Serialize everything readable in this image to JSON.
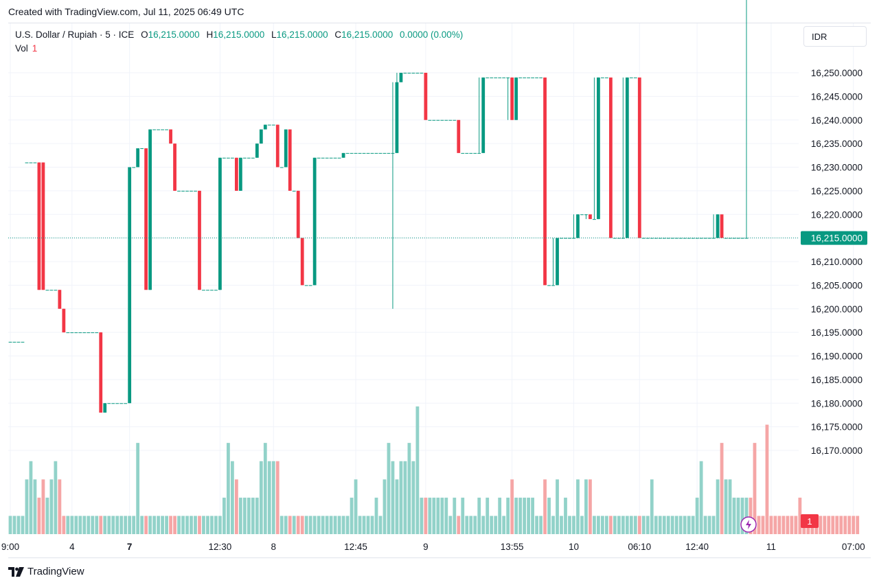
{
  "header": {
    "caption": "Created with TradingView.com, Jul 11, 2025 06:49 UTC"
  },
  "legend": {
    "symbol": "U.S. Dollar / Rupiah · 5 · ICE",
    "o_label": "O",
    "o_value": "16,215.0000",
    "h_label": "H",
    "h_value": "16,215.0000",
    "l_label": "L",
    "l_value": "16,215.0000",
    "c_label": "C",
    "c_value": "16,215.0000",
    "change": "0.0000 (0.00%)",
    "vol_label": "Vol",
    "vol_value": "1"
  },
  "price_axis": {
    "currency": "IDR"
  },
  "footer": {
    "brand": "TradingView"
  },
  "colors": {
    "up": "#089981",
    "down": "#f23645",
    "vol_up": "#92d2c9",
    "vol_down": "#f5a6a6",
    "grid": "#f0f3fa"
  },
  "chart_data": {
    "type": "candlestick",
    "y_ticks": [
      "16,250.0000",
      "16,245.0000",
      "16,240.0000",
      "16,235.0000",
      "16,230.0000",
      "16,225.0000",
      "16,220.0000",
      "16,215.0000",
      "16,210.0000",
      "16,205.0000",
      "16,200.0000",
      "16,195.0000",
      "16,190.0000",
      "16,185.0000",
      "16,180.0000",
      "16,175.0000",
      "16,170.0000"
    ],
    "y_tick_values": [
      16250,
      16245,
      16240,
      16235,
      16230,
      16225,
      16220,
      16215,
      16210,
      16205,
      16200,
      16195,
      16190,
      16185,
      16180,
      16175,
      16170
    ],
    "ylim": [
      16167,
      16253
    ],
    "last_price": "16,215.0000",
    "last_volume": "1",
    "x_ticks": [
      {
        "label": "9:00",
        "index": 0
      },
      {
        "label": "4",
        "index": 15,
        "bold": false
      },
      {
        "label": "7",
        "index": 29,
        "bold": true
      },
      {
        "label": "12:30",
        "index": 51
      },
      {
        "label": "8",
        "index": 64
      },
      {
        "label": "12:45",
        "index": 84
      },
      {
        "label": "9",
        "index": 101
      },
      {
        "label": "13:55",
        "index": 122
      },
      {
        "label": "10",
        "index": 137
      },
      {
        "label": "06:10",
        "index": 153
      },
      {
        "label": "12:40",
        "index": 167
      },
      {
        "label": "11",
        "index": 185
      },
      {
        "label": "07:00",
        "index": 205
      }
    ],
    "candles_o": [
      16193,
      16193,
      16193,
      16193,
      16231,
      16231,
      16231,
      16231,
      16231,
      16204,
      16204,
      16204,
      16204,
      16200,
      16195,
      16195,
      16195,
      16195,
      16195,
      16195,
      16195,
      16195,
      16195,
      16178,
      16180,
      16180,
      16180,
      16180,
      16180,
      16180,
      16230,
      16230,
      16234,
      16234,
      16204,
      16238,
      16238,
      16238,
      16238,
      16238,
      16235,
      16225,
      16225,
      16225,
      16225,
      16225,
      16225,
      16204,
      16204,
      16204,
      16204,
      16204,
      16232,
      16232,
      16232,
      16232,
      16225,
      16232,
      16232,
      16232,
      16232,
      16235,
      16238,
      16239,
      16239,
      16239,
      16230,
      16230,
      16238,
      16225,
      16225,
      16215,
      16205,
      16205,
      16205,
      16232,
      16232,
      16232,
      16232,
      16232,
      16232,
      16232,
      16233,
      16233,
      16233,
      16233,
      16233,
      16233,
      16233,
      16233,
      16233,
      16233,
      16233,
      16233,
      16233,
      16248,
      16250,
      16250,
      16250,
      16250,
      16250,
      16250,
      16240,
      16240,
      16240,
      16240,
      16240,
      16240,
      16240,
      16240,
      16233,
      16233,
      16233,
      16233,
      16233,
      16233,
      16249,
      16249,
      16249,
      16249,
      16249,
      16249,
      16249,
      16240,
      16249,
      16249,
      16249,
      16249,
      16249,
      16249,
      16249,
      16205,
      16205,
      16205,
      16215,
      16215,
      16215,
      16215,
      16215,
      16220,
      16220,
      16220,
      16219,
      16219,
      16249,
      16249,
      16249,
      16215,
      16215,
      16215,
      16215,
      16249,
      16249,
      16249,
      16215,
      16215,
      16215,
      16215,
      16215,
      16215,
      16215,
      16215,
      16215,
      16215,
      16215,
      16215,
      16215,
      16215,
      16215,
      16215,
      16215,
      16215,
      16215,
      16220,
      16215,
      16215,
      16215,
      16215,
      16215,
      16215
    ],
    "candles_c": [
      16193,
      16193,
      16193,
      16193,
      16231,
      16231,
      16231,
      16204,
      16204,
      16204,
      16204,
      16204,
      16200,
      16195,
      16195,
      16195,
      16195,
      16195,
      16195,
      16195,
      16195,
      16195,
      16178,
      16180,
      16180,
      16180,
      16180,
      16180,
      16180,
      16230,
      16230,
      16234,
      16234,
      16204,
      16238,
      16238,
      16238,
      16238,
      16238,
      16235,
      16225,
      16225,
      16225,
      16225,
      16225,
      16225,
      16204,
      16204,
      16204,
      16204,
      16204,
      16232,
      16232,
      16232,
      16232,
      16225,
      16232,
      16232,
      16232,
      16232,
      16235,
      16238,
      16239,
      16239,
      16239,
      16230,
      16230,
      16238,
      16225,
      16225,
      16215,
      16205,
      16205,
      16205,
      16232,
      16232,
      16232,
      16232,
      16232,
      16232,
      16232,
      16233,
      16233,
      16233,
      16233,
      16233,
      16233,
      16233,
      16233,
      16233,
      16233,
      16233,
      16233,
      16233,
      16248,
      16250,
      16250,
      16250,
      16250,
      16250,
      16250,
      16240,
      16240,
      16240,
      16240,
      16240,
      16240,
      16240,
      16240,
      16233,
      16233,
      16233,
      16233,
      16233,
      16233,
      16249,
      16249,
      16249,
      16249,
      16249,
      16249,
      16249,
      16240,
      16249,
      16249,
      16249,
      16249,
      16249,
      16249,
      16249,
      16205,
      16205,
      16205,
      16215,
      16215,
      16215,
      16215,
      16215,
      16220,
      16220,
      16220,
      16219,
      16219,
      16249,
      16249,
      16249,
      16215,
      16215,
      16215,
      16215,
      16249,
      16249,
      16249,
      16215,
      16215,
      16215,
      16215,
      16215,
      16215,
      16215,
      16215,
      16215,
      16215,
      16215,
      16215,
      16215,
      16215,
      16215,
      16215,
      16215,
      16215,
      16215,
      16220,
      16215,
      16215,
      16215,
      16215,
      16215,
      16215,
      16215
    ],
    "candles_h": [
      16193,
      16193,
      16193,
      16193,
      16231,
      16231,
      16231,
      16231,
      16231,
      16204,
      16204,
      16204,
      16204,
      16200,
      16195,
      16195,
      16195,
      16195,
      16195,
      16195,
      16195,
      16195,
      16195,
      16180,
      16180,
      16180,
      16180,
      16180,
      16180,
      16230,
      16230,
      16234,
      16234,
      16204,
      16238,
      16238,
      16238,
      16238,
      16238,
      16238,
      16235,
      16225,
      16225,
      16225,
      16225,
      16225,
      16225,
      16204,
      16204,
      16204,
      16204,
      16232,
      16232,
      16232,
      16232,
      16232,
      16232,
      16232,
      16232,
      16232,
      16235,
      16238,
      16239,
      16239,
      16239,
      16239,
      16230,
      16238,
      16238,
      16225,
      16225,
      16215,
      16205,
      16205,
      16232,
      16232,
      16232,
      16232,
      16232,
      16232,
      16232,
      16233,
      16233,
      16233,
      16233,
      16233,
      16233,
      16233,
      16233,
      16233,
      16233,
      16233,
      16233,
      16248,
      16250,
      16250,
      16250,
      16250,
      16250,
      16250,
      16250,
      16240,
      16240,
      16240,
      16240,
      16240,
      16240,
      16240,
      16240,
      16233,
      16233,
      16233,
      16233,
      16233,
      16249,
      16249,
      16249,
      16249,
      16249,
      16249,
      16249,
      16249,
      16249,
      16249,
      16249,
      16249,
      16249,
      16249,
      16249,
      16249,
      16205,
      16205,
      16215,
      16215,
      16215,
      16215,
      16215,
      16220,
      16220,
      16220,
      16220,
      16219,
      16249,
      16249,
      16249,
      16249,
      16215,
      16215,
      16215,
      16249,
      16249,
      16249,
      16249,
      16215,
      16215,
      16215,
      16215,
      16215,
      16215,
      16215,
      16215,
      16215,
      16215,
      16215,
      16215,
      16215,
      16215,
      16215,
      16215,
      16215,
      16215,
      16220,
      16220,
      16215,
      16215,
      16215,
      16215,
      16215,
      16215
    ],
    "candles_l": [
      16193,
      16193,
      16193,
      16193,
      16231,
      16231,
      16231,
      16204,
      16204,
      16204,
      16204,
      16204,
      16200,
      16195,
      16195,
      16195,
      16195,
      16195,
      16195,
      16195,
      16195,
      16195,
      16178,
      16178,
      16180,
      16180,
      16180,
      16180,
      16180,
      16180,
      16230,
      16230,
      16234,
      16204,
      16204,
      16238,
      16238,
      16238,
      16238,
      16235,
      16225,
      16225,
      16225,
      16225,
      16225,
      16225,
      16204,
      16204,
      16204,
      16204,
      16204,
      16204,
      16232,
      16232,
      16232,
      16225,
      16225,
      16232,
      16232,
      16232,
      16232,
      16235,
      16238,
      16239,
      16239,
      16230,
      16230,
      16230,
      16225,
      16225,
      16215,
      16205,
      16205,
      16205,
      16205,
      16232,
      16232,
      16232,
      16232,
      16232,
      16232,
      16232,
      16233,
      16233,
      16233,
      16233,
      16233,
      16233,
      16233,
      16233,
      16233,
      16233,
      16233,
      16200,
      16233,
      16248,
      16250,
      16250,
      16250,
      16250,
      16250,
      16240,
      16240,
      16240,
      16240,
      16240,
      16240,
      16240,
      16240,
      16233,
      16233,
      16233,
      16233,
      16233,
      16233,
      16233,
      16249,
      16249,
      16249,
      16249,
      16249,
      16240,
      16240,
      16240,
      16249,
      16249,
      16249,
      16249,
      16249,
      16249,
      16205,
      16205,
      16205,
      16205,
      16215,
      16215,
      16215,
      16215,
      16215,
      16220,
      16219,
      16219,
      16219,
      16219,
      16249,
      16249,
      16215,
      16215,
      16215,
      16215,
      16215,
      16249,
      16249,
      16215,
      16215,
      16215,
      16215,
      16215,
      16215,
      16215,
      16215,
      16215,
      16215,
      16215,
      16215,
      16215,
      16215,
      16215,
      16215,
      16215,
      16215,
      16215,
      16215,
      16215,
      16215,
      16215,
      16215,
      16215,
      16215,
      16215
    ],
    "volumes": [
      1,
      1,
      1,
      1,
      3,
      4,
      3,
      2,
      3,
      2,
      3,
      4,
      3,
      1,
      1,
      1,
      1,
      1,
      1,
      1,
      1,
      1,
      1,
      1,
      1,
      1,
      1,
      1,
      1,
      1,
      1,
      5,
      1,
      1,
      1,
      1,
      1,
      1,
      1,
      1,
      1,
      1,
      1,
      1,
      1,
      1,
      1,
      1,
      1,
      1,
      1,
      1,
      2,
      5,
      4,
      3,
      2,
      2,
      2,
      2,
      2,
      4,
      5,
      4,
      4,
      4,
      1,
      1,
      1,
      1,
      1,
      1,
      1,
      1,
      1,
      1,
      1,
      1,
      1,
      1,
      1,
      1,
      1,
      2,
      3,
      1,
      1,
      1,
      1,
      2,
      1,
      3,
      5,
      4,
      3,
      4,
      4,
      5,
      4,
      7,
      2,
      2,
      2,
      2,
      2,
      2,
      2,
      1,
      2,
      1,
      2,
      1,
      1,
      1,
      2,
      1,
      2,
      1,
      1,
      2,
      1,
      2,
      3,
      2,
      2,
      2,
      2,
      2,
      1,
      1,
      3,
      2,
      1,
      3,
      1,
      2,
      1,
      1,
      3,
      1,
      3,
      3,
      1,
      1,
      1,
      1,
      1,
      1,
      1,
      1,
      1,
      1,
      1,
      1,
      1,
      1,
      3,
      1,
      1,
      1,
      1,
      1,
      1,
      1,
      1,
      1,
      1,
      2,
      4,
      1,
      1,
      1,
      3,
      5,
      3,
      3,
      2,
      2,
      2,
      2,
      2,
      5,
      1,
      1,
      6,
      1,
      1,
      1,
      1,
      1,
      1,
      1,
      2,
      1,
      1,
      1,
      1,
      1,
      1,
      1,
      1,
      1,
      1,
      1,
      1,
      1,
      1
    ],
    "vol_max": 7
  }
}
